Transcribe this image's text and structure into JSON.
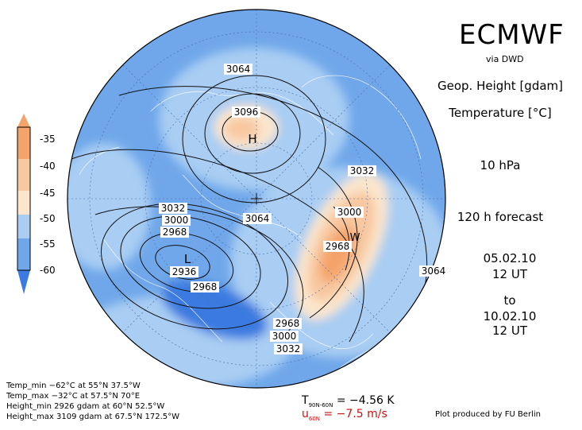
{
  "header": {
    "brand": "ECMWF",
    "source": "via DWD"
  },
  "fields": {
    "geop_height": "Geop. Height [gdam]",
    "temperature": "Temperature [°C]",
    "level": "10 hPa",
    "forecast": "120 h forecast"
  },
  "time": {
    "init_date": "05.02.10",
    "init_time": "12 UT",
    "to": "to",
    "valid_date": "10.02.10",
    "valid_time": "12 UT"
  },
  "colorbar": {
    "labels": [
      "-35",
      "-40",
      "-45",
      "-50",
      "-55",
      "-60"
    ],
    "colors": [
      "#f4a46b",
      "#f8c8a0",
      "#fbe6cc",
      "#a9cdf3",
      "#6fa7ea",
      "#3b7ae0"
    ]
  },
  "contour_labels": {
    "l3064_top": "3064",
    "l3096": "3096",
    "l3032_right": "3032",
    "l3000_right": "3000",
    "l2968_right": "2968",
    "l3064_right": "3064",
    "l3032_left": "3032",
    "l3000_left": "3000",
    "l2968_left": "2968",
    "l2936": "2936",
    "l2968_low": "2968",
    "l3064_center": "3064",
    "l2968_bottom": "2968",
    "l3000_bottom": "3000",
    "l3032_bottom": "3032"
  },
  "markers": {
    "high": "H",
    "low": "L",
    "warm": "W"
  },
  "stats": {
    "temp_min": "Temp_min −62°C at 55°N 37.5°W",
    "temp_max": "Temp_max −32°C at 57.5°N 70°E",
    "height_min": "Height_min 2926 gdam at 60°N 52.5°W",
    "height_max": "Height_max 3109 gdam at 67.5°N 172.5°W"
  },
  "diagnostics": {
    "t_label": "T",
    "t_sub": "90N-60N",
    "t_value": "= −4.56 K",
    "u_label": "u",
    "u_sub": "60N",
    "u_value": "= −7.5 m/s"
  },
  "credit": "Plot produced by FU Berlin"
}
